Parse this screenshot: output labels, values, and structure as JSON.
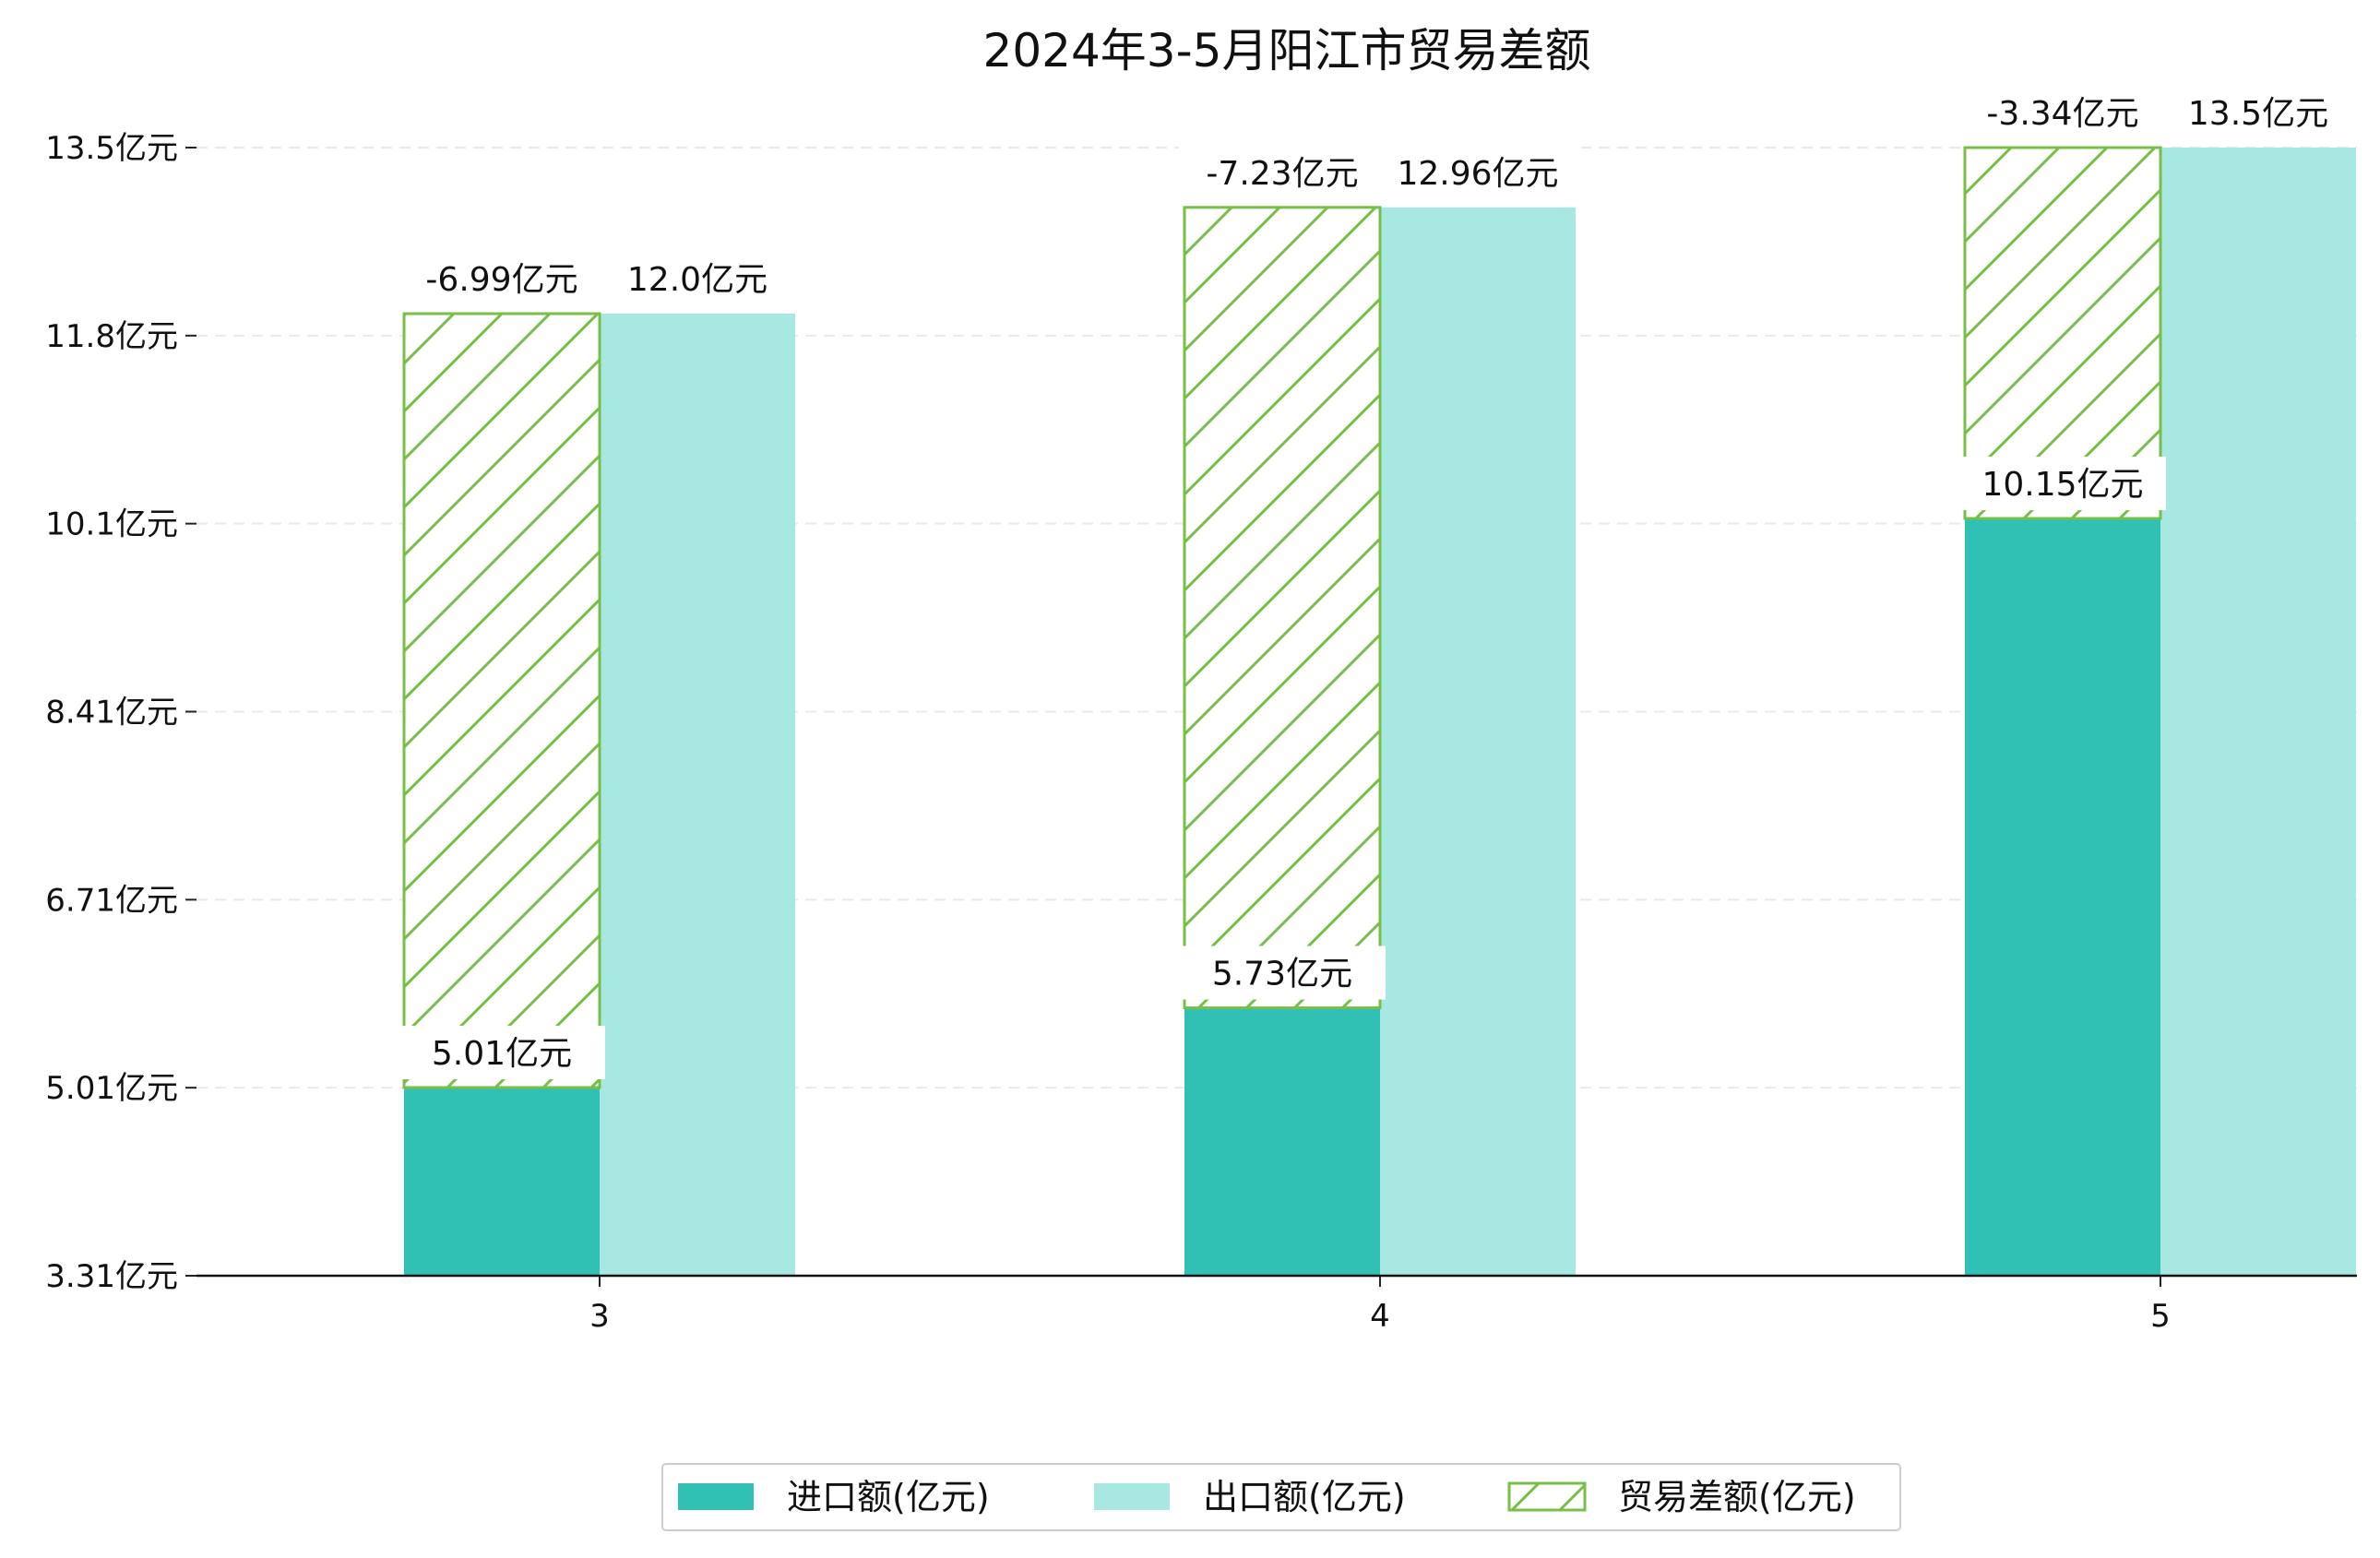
{
  "chart_data": {
    "type": "bar",
    "title": "2024年3-5月阳江市贸易差额",
    "xlabel": "",
    "ylabel": "",
    "categories": [
      "3",
      "4",
      "5"
    ],
    "ylim": [
      3.31,
      13.5
    ],
    "yticks": [
      "3.31亿元",
      "5.01亿元",
      "6.71亿元",
      "8.41亿元",
      "10.1亿元",
      "11.8亿元",
      "13.5亿元"
    ],
    "grid": true,
    "legend_position": "bottom-center",
    "series": [
      {
        "name": "进口额(亿元)",
        "values": [
          5.01,
          5.73,
          10.15
        ],
        "labels": [
          "5.01亿元",
          "5.73亿元",
          "10.15亿元"
        ],
        "color": "#30c0b4"
      },
      {
        "name": "出口额(亿元)",
        "values": [
          12.0,
          12.96,
          13.5
        ],
        "labels": [
          "12.0亿元",
          "12.96亿元",
          "13.5亿元"
        ],
        "color": "#a8e8e2"
      },
      {
        "name": "贸易差额(亿元)",
        "values": [
          -6.99,
          -7.23,
          -3.34
        ],
        "labels": [
          "-6.99亿元",
          "-7.23亿元",
          "-3.34亿元"
        ],
        "color": "#78bf48",
        "style": "hatched"
      }
    ]
  }
}
